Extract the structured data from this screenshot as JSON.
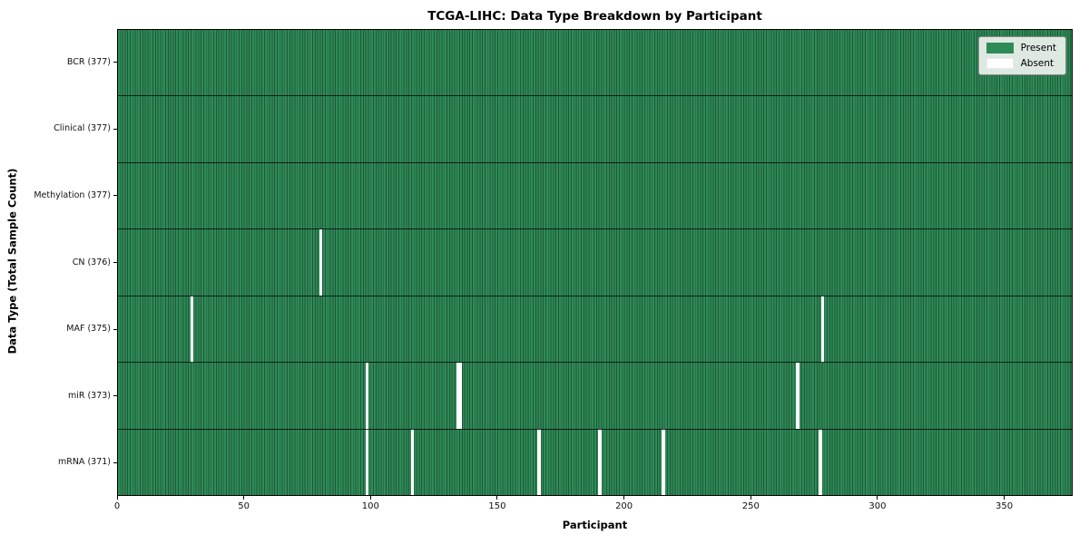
{
  "chart_data": {
    "type": "heatmap",
    "title": "TCGA-LIHC: Data Type Breakdown by Participant",
    "xlabel": "Participant",
    "ylabel": "Data Type (Total Sample Count)",
    "x_ticks": [
      0,
      50,
      100,
      150,
      200,
      250,
      300,
      350
    ],
    "x_range": [
      0,
      377
    ],
    "n_participants": 377,
    "rows": [
      {
        "label": "BCR (377)",
        "data_type": "BCR",
        "present_count": 377,
        "absent_participants": []
      },
      {
        "label": "Clinical (377)",
        "data_type": "Clinical",
        "present_count": 377,
        "absent_participants": []
      },
      {
        "label": "Methylation (377)",
        "data_type": "Methylation",
        "present_count": 377,
        "absent_participants": []
      },
      {
        "label": "CN (376)",
        "data_type": "CN",
        "present_count": 376,
        "absent_participants": [
          80
        ]
      },
      {
        "label": "MAF (375)",
        "data_type": "MAF",
        "present_count": 375,
        "absent_participants": [
          29,
          278
        ]
      },
      {
        "label": "miR (373)",
        "data_type": "miR",
        "present_count": 373,
        "absent_participants": [
          98,
          134,
          135,
          268
        ]
      },
      {
        "label": "mRNA (371)",
        "data_type": "mRNA",
        "present_count": 371,
        "absent_participants": [
          98,
          116,
          166,
          190,
          215,
          277
        ]
      }
    ],
    "legend": {
      "position": "upper-right-inside",
      "entries": [
        {
          "label": "Present",
          "color": "#2e8b57"
        },
        {
          "label": "Absent",
          "color": "#ffffff"
        }
      ]
    },
    "colors": {
      "present": "#2e8b57",
      "absent": "#ffffff",
      "cell_edge": "#20573a",
      "row_divider": "#0d0d0d",
      "plot_border": "#000000",
      "legend_background": "#eef2ee"
    }
  }
}
